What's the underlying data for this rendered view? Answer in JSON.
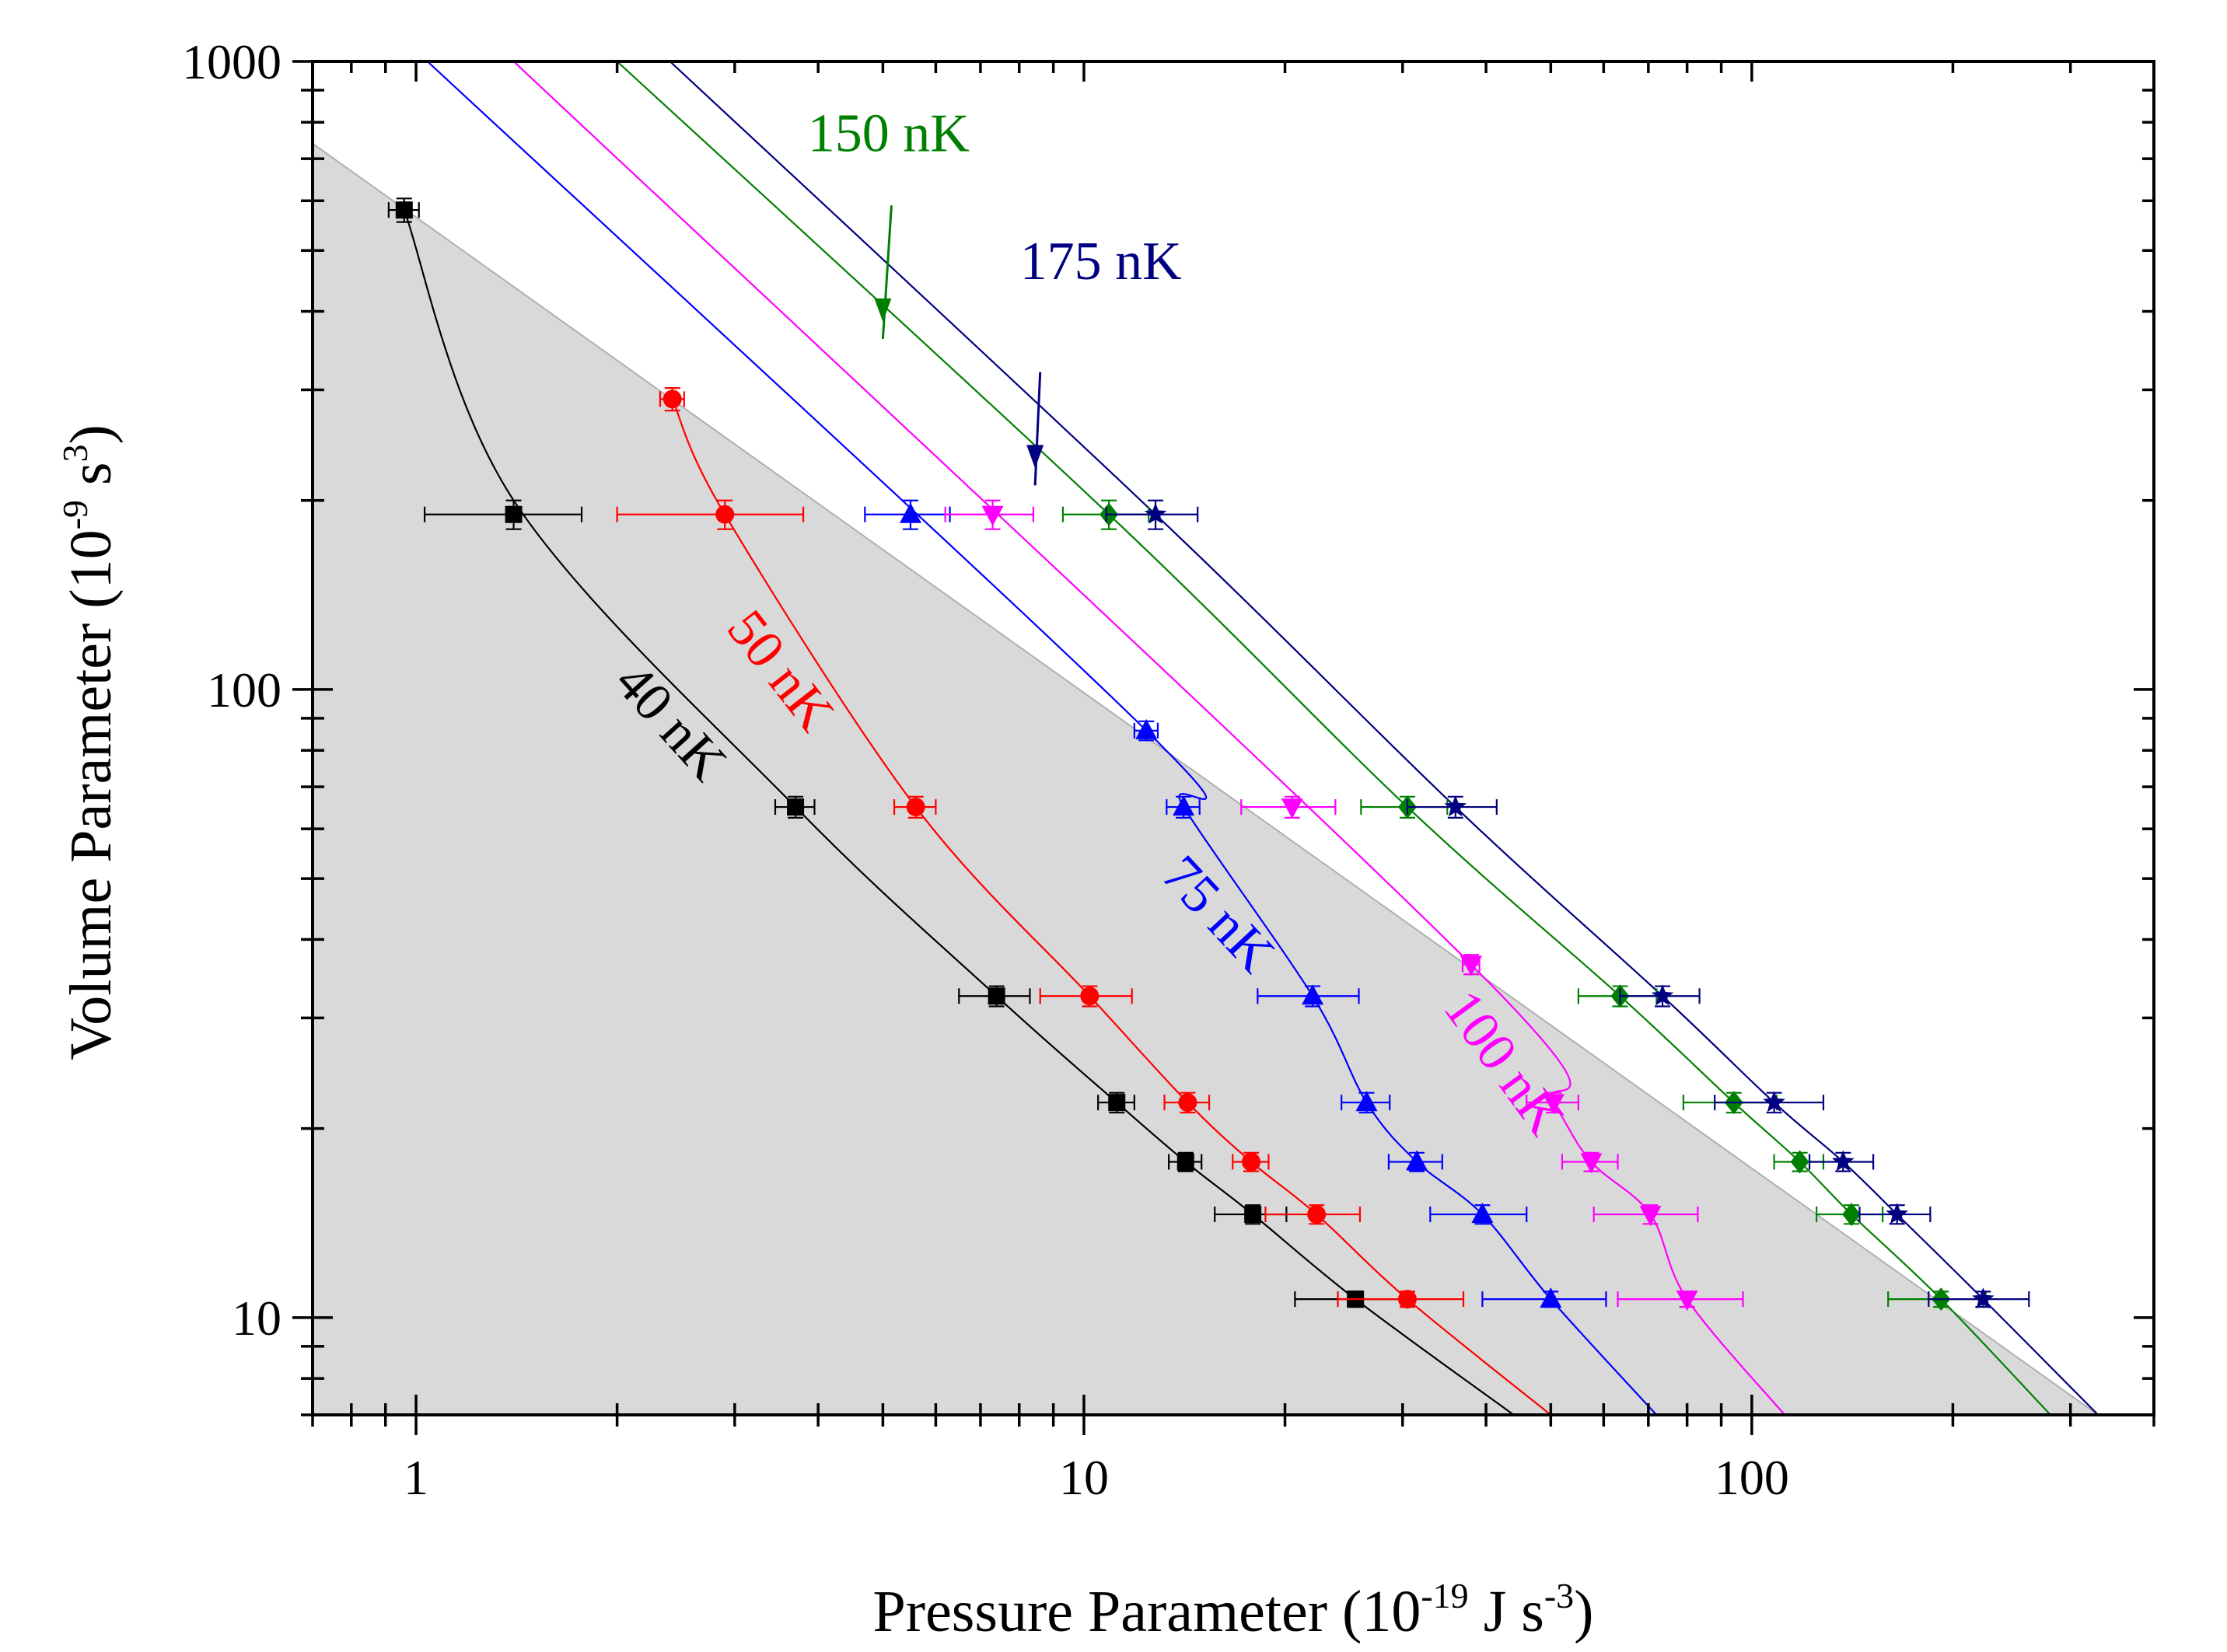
{
  "chart_data": {
    "type": "scatter",
    "xscale": "log",
    "yscale": "log",
    "xlim": [
      0.7,
      400
    ],
    "ylim": [
      7,
      1000
    ],
    "xlabel": "Pressure Parameter (10-19 J s-3)",
    "ylabel": "Volume Parameter (10-9 s3)",
    "xlabel_parts": {
      "text": "Pressure Parameter (10",
      "exp1": "-19",
      "mid": " J s",
      "exp2": "-3",
      "end": ")"
    },
    "ylabel_parts": {
      "text": "Volume Parameter (10",
      "exp1": "-9",
      "mid": " s",
      "exp2": "3",
      "end": ")"
    },
    "x_ticks": [
      1,
      10,
      100
    ],
    "x_tick_labels": [
      "1",
      "10",
      "100"
    ],
    "y_ticks": [
      10,
      100,
      1000
    ],
    "y_tick_labels": [
      "10",
      "100",
      "1000"
    ],
    "shaded_region": {
      "color": "#d9d9d9",
      "vertices": [
        [
          0.7,
          7
        ],
        [
          0.7,
          740
        ],
        [
          330,
          7
        ]
      ]
    },
    "series": [
      {
        "name": "40 nK",
        "color": "#000000",
        "marker": "square",
        "points": [
          {
            "x": 0.96,
            "y": 580,
            "xerr": 0.05,
            "yerr": 25
          },
          {
            "x": 1.4,
            "y": 190,
            "xerr": 0.37,
            "yerr": 10
          },
          {
            "x": 3.7,
            "y": 65,
            "xerr": 0.25,
            "yerr": 2.5
          },
          {
            "x": 7.4,
            "y": 32.5,
            "xerr": 0.9,
            "yerr": 1.2
          },
          {
            "x": 11.2,
            "y": 22,
            "xerr": 0.7,
            "yerr": 0.8
          },
          {
            "x": 14.2,
            "y": 17.7,
            "xerr": 0.8,
            "yerr": 0.6
          },
          {
            "x": 17.9,
            "y": 14.6,
            "xerr": 2.2,
            "yerr": 0.5
          },
          {
            "x": 25.5,
            "y": 10.7,
            "xerr": 4.8,
            "yerr": 0.3
          }
        ],
        "curve": [
          [
            0.96,
            580
          ],
          [
            1.4,
            200
          ],
          [
            3.7,
            65
          ],
          [
            7.4,
            32.5
          ],
          [
            11.2,
            22
          ],
          [
            14.2,
            17.7
          ],
          [
            17.9,
            14.6
          ],
          [
            25.5,
            10.7
          ],
          [
            44,
            7
          ]
        ]
      },
      {
        "name": "50 nK",
        "color": "#ff0000",
        "marker": "circle",
        "points": [
          {
            "x": 2.42,
            "y": 290,
            "xerr": 0.1,
            "yerr": 12
          },
          {
            "x": 2.9,
            "y": 190,
            "xerr": 0.9,
            "yerr": 10
          },
          {
            "x": 5.6,
            "y": 65,
            "xerr": 0.4,
            "yerr": 2.5
          },
          {
            "x": 10.2,
            "y": 32.5,
            "xerr": 1.6,
            "yerr": 1.2
          },
          {
            "x": 14.3,
            "y": 22,
            "xerr": 1.1,
            "yerr": 0.8
          },
          {
            "x": 17.8,
            "y": 17.7,
            "xerr": 1.1,
            "yerr": 0.6
          },
          {
            "x": 22.3,
            "y": 14.6,
            "xerr": 3.6,
            "yerr": 0.5
          },
          {
            "x": 30.5,
            "y": 10.7,
            "xerr": 6.5,
            "yerr": 0.3
          }
        ],
        "curve": [
          [
            2.42,
            290
          ],
          [
            2.9,
            190
          ],
          [
            5.6,
            65
          ],
          [
            10.2,
            32.5
          ],
          [
            14.3,
            22
          ],
          [
            17.8,
            17.7
          ],
          [
            22.3,
            14.6
          ],
          [
            30.5,
            10.7
          ],
          [
            50,
            7
          ]
        ]
      },
      {
        "name": "75 nK",
        "color": "#0000ff",
        "marker": "triangle-up",
        "points": [
          {
            "x": 5.5,
            "y": 190,
            "xerr": 0.8,
            "yerr": 10
          },
          {
            "x": 12.4,
            "y": 86,
            "xerr": 0.5,
            "yerr": 3
          },
          {
            "x": 14.1,
            "y": 65,
            "xerr": 0.8,
            "yerr": 2.5
          },
          {
            "x": 22,
            "y": 32.5,
            "xerr": 3.8,
            "yerr": 1.2
          },
          {
            "x": 26.5,
            "y": 22,
            "xerr": 2.2,
            "yerr": 0.8
          },
          {
            "x": 31.5,
            "y": 17.7,
            "xerr": 2.9,
            "yerr": 0.6
          },
          {
            "x": 39.5,
            "y": 14.6,
            "xerr": 6.5,
            "yerr": 0.5
          },
          {
            "x": 50,
            "y": 10.7,
            "xerr": 10.5,
            "yerr": 0.3
          }
        ],
        "curve": [
          [
            1.04,
            1000
          ],
          [
            12.4,
            86
          ],
          [
            14.1,
            65
          ],
          [
            22,
            32.5
          ],
          [
            26.5,
            22
          ],
          [
            31.5,
            17.7
          ],
          [
            39.5,
            14.6
          ],
          [
            50,
            10.7
          ],
          [
            72,
            7
          ]
        ]
      },
      {
        "name": "100 nK",
        "color": "#ff00ff",
        "marker": "triangle-down",
        "points": [
          {
            "x": 7.3,
            "y": 190,
            "xerr": 1.1,
            "yerr": 10
          },
          {
            "x": 20.5,
            "y": 65,
            "xerr": 3.3,
            "yerr": 2.5
          },
          {
            "x": 38,
            "y": 36.5,
            "xerr": 1.1,
            "yerr": 1.3
          },
          {
            "x": 50.5,
            "y": 22,
            "xerr": 4.5,
            "yerr": 0.8
          },
          {
            "x": 57.5,
            "y": 17.7,
            "xerr": 5.5,
            "yerr": 0.6
          },
          {
            "x": 70.5,
            "y": 14.6,
            "xerr": 12.5,
            "yerr": 0.5
          },
          {
            "x": 80,
            "y": 10.7,
            "xerr": 17,
            "yerr": 0.3
          }
        ],
        "curve": [
          [
            1.4,
            1000
          ],
          [
            38,
            36.5
          ],
          [
            50.5,
            22
          ],
          [
            57.5,
            17.7
          ],
          [
            70.5,
            14.6
          ],
          [
            80,
            10.7
          ],
          [
            112,
            7
          ]
        ]
      },
      {
        "name": "150 nK",
        "color": "#008000",
        "marker": "diamond",
        "points": [
          {
            "x": 10.9,
            "y": 190,
            "xerr": 1.6,
            "yerr": 10
          },
          {
            "x": 30.5,
            "y": 65,
            "xerr": 4.5,
            "yerr": 2.5
          },
          {
            "x": 63.5,
            "y": 32.5,
            "xerr": 8.5,
            "yerr": 1.2
          },
          {
            "x": 94,
            "y": 22,
            "xerr": 15,
            "yerr": 0.8
          },
          {
            "x": 118,
            "y": 17.7,
            "xerr": 10,
            "yerr": 0.6
          },
          {
            "x": 141,
            "y": 14.6,
            "xerr": 16,
            "yerr": 0.5
          },
          {
            "x": 192,
            "y": 10.7,
            "xerr": 32,
            "yerr": 0.3
          }
        ],
        "curve": [
          [
            2.0,
            1000
          ],
          [
            10.9,
            190
          ],
          [
            30.5,
            65
          ],
          [
            63.5,
            32.5
          ],
          [
            94,
            22
          ],
          [
            118,
            17.7
          ],
          [
            141,
            14.6
          ],
          [
            192,
            10.7
          ],
          [
            280,
            7
          ]
        ]
      },
      {
        "name": "175 nK",
        "color": "#000080",
        "marker": "star",
        "points": [
          {
            "x": 12.8,
            "y": 190,
            "xerr": 2.0,
            "yerr": 10
          },
          {
            "x": 36,
            "y": 65,
            "xerr": 5.5,
            "yerr": 2.5
          },
          {
            "x": 73.5,
            "y": 32.5,
            "xerr": 10,
            "yerr": 1.2
          },
          {
            "x": 108,
            "y": 22,
            "xerr": 20,
            "yerr": 0.8
          },
          {
            "x": 137,
            "y": 17.7,
            "xerr": 15,
            "yerr": 0.6
          },
          {
            "x": 165,
            "y": 14.6,
            "xerr": 20,
            "yerr": 0.5
          },
          {
            "x": 222,
            "y": 10.7,
            "xerr": 38,
            "yerr": 0.3
          }
        ],
        "curve": [
          [
            2.4,
            1000
          ],
          [
            12.8,
            190
          ],
          [
            36,
            65
          ],
          [
            73.5,
            32.5
          ],
          [
            108,
            22
          ],
          [
            137,
            17.7
          ],
          [
            165,
            14.6
          ],
          [
            222,
            10.7
          ],
          [
            330,
            7
          ]
        ]
      }
    ],
    "annotations": [
      {
        "text": "40 nK",
        "color": "#000000",
        "anchor": [
          2.3,
          85
        ],
        "rotate": 48,
        "arrow": null
      },
      {
        "text": "50 nK",
        "color": "#ff0000",
        "anchor": [
          3.35,
          103
        ],
        "rotate": 52,
        "arrow": null
      },
      {
        "text": "75 nK",
        "color": "#0000ff",
        "anchor": [
          15.2,
          42
        ],
        "rotate": 47,
        "arrow": null
      },
      {
        "text": "100 nK",
        "color": "#ff00ff",
        "anchor": [
          40.5,
          24.5
        ],
        "rotate": 54,
        "arrow": null
      },
      {
        "text": "150 nK",
        "color": "#008000",
        "anchor": [
          5.1,
          720
        ],
        "rotate": 0,
        "arrow": {
          "from": [
            5.15,
            590
          ],
          "to": [
            5.0,
            385
          ]
        }
      },
      {
        "text": "175 nK",
        "color": "#000080",
        "anchor": [
          10.6,
          450
        ],
        "rotate": 0,
        "arrow": {
          "from": [
            8.6,
            320
          ],
          "to": [
            8.45,
            225
          ]
        }
      }
    ]
  }
}
